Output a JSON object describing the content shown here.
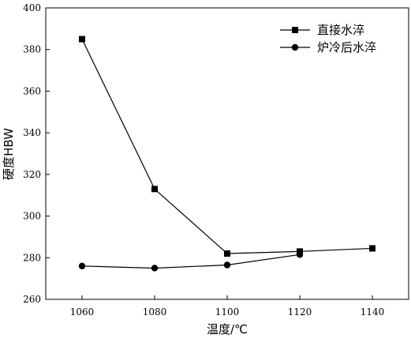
{
  "chart_data": {
    "type": "line",
    "xlabel": "温度/℃",
    "ylabel": "硬度HBW",
    "xlim": [
      1050,
      1150
    ],
    "ylim": [
      260,
      400
    ],
    "xticks": [
      1060,
      1080,
      1100,
      1120,
      1140
    ],
    "yticks": [
      260,
      280,
      300,
      320,
      340,
      360,
      380,
      400
    ],
    "grid": false,
    "legend_position": "top-right",
    "series": [
      {
        "name": "直接水淬",
        "marker": "square",
        "color": "#000000",
        "x": [
          1060,
          1080,
          1100,
          1120,
          1140
        ],
        "y": [
          385,
          313,
          282,
          283,
          284.5
        ]
      },
      {
        "name": "炉冷后水淬",
        "marker": "circle",
        "color": "#000000",
        "x": [
          1060,
          1080,
          1100,
          1120
        ],
        "y": [
          276,
          275,
          276.5,
          281.5
        ]
      }
    ]
  }
}
